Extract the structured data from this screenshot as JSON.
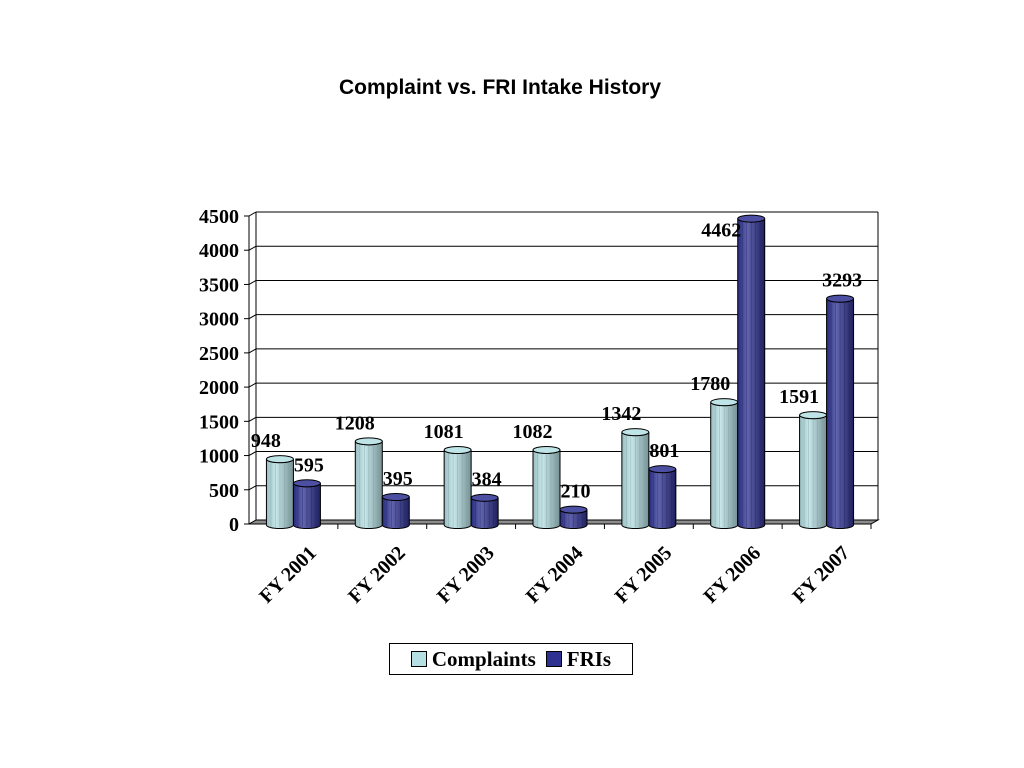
{
  "chart_data": {
    "type": "bar",
    "title": "Complaint vs. FRI Intake History",
    "xlabel": "",
    "ylabel": "",
    "categories": [
      "FY 2001",
      "FY 2002",
      "FY 2003",
      "FY 2004",
      "FY 2005",
      "FY 2006",
      "FY 2007"
    ],
    "series": [
      {
        "name": "Complaints",
        "values": [
          948,
          1208,
          1081,
          1082,
          1342,
          1780,
          1591
        ],
        "color": "#b4dfe3"
      },
      {
        "name": "FRIs",
        "values": [
          595,
          395,
          384,
          210,
          801,
          4462,
          3293
        ],
        "color": "#2e3192"
      }
    ],
    "ylim": [
      0,
      4500
    ],
    "yticks": [
      "0",
      "500",
      "1000",
      "1500",
      "2000",
      "2500",
      "3000",
      "3500",
      "4000",
      "4500"
    ],
    "grid": true,
    "legend": "bottom",
    "style": "3d-cylinder"
  }
}
